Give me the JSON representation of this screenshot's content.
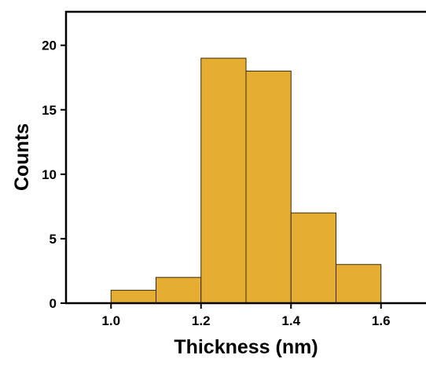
{
  "chart_data": {
    "type": "histogram",
    "xlabel": "Thickness (nm)",
    "ylabel": "Counts",
    "bins": [
      1,
      1.1,
      1.2,
      1.3,
      1.4,
      1.5,
      1.6
    ],
    "values": [
      1,
      2,
      19,
      18,
      7,
      3
    ],
    "color": "#e5ae32",
    "xlim": [
      0.9,
      1.7
    ],
    "xticks": [
      {
        "value": 1,
        "label": "1.0"
      },
      1.2,
      1.4,
      1.6
    ],
    "ylim": [
      0,
      22.6
    ],
    "yticks": [
      0,
      5,
      10,
      15,
      20
    ]
  }
}
